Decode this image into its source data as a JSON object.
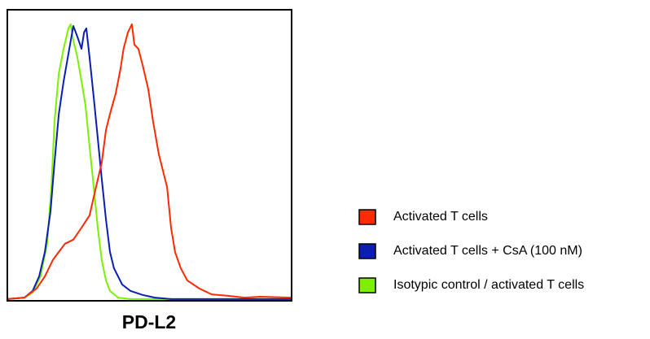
{
  "chart_data": {
    "type": "line",
    "x_label": "PD-L2",
    "xlim": [
      0,
      100
    ],
    "ylim": [
      0,
      100
    ],
    "series": [
      {
        "name": "Activated T cells",
        "color": "#ff2a00",
        "x": [
          0,
          6,
          10.3,
          13.2,
          16.0,
          18.1,
          20.3,
          23.2,
          26.1,
          28.9,
          31.2,
          33.2,
          34.7,
          36.1,
          38.1,
          39.8,
          40.9,
          42.4,
          43.8,
          44.7,
          46.1,
          47.6,
          49.6,
          51.3,
          53.3,
          56.2,
          57.6,
          59.0,
          61.0,
          63.3,
          67.6,
          71.9,
          77.7,
          83.4,
          89.1,
          100
        ],
        "values": [
          0.6,
          1.1,
          4.2,
          8.4,
          14,
          16.8,
          19.6,
          21,
          25.1,
          29.3,
          39.1,
          47.5,
          58.7,
          64.2,
          71.2,
          79.6,
          86.6,
          92.2,
          95,
          88,
          86.6,
          81,
          72.6,
          61.5,
          50.3,
          39.1,
          25.1,
          16.8,
          11.2,
          7,
          4.2,
          2.2,
          1.7,
          1.1,
          1.4,
          1.1
        ]
      },
      {
        "name": "Activated T cells + CsA (100 nM)",
        "color": "#0a1eb4",
        "x": [
          0,
          6,
          8.9,
          11.2,
          13.2,
          15.2,
          16.6,
          18.1,
          19.8,
          21.8,
          23.2,
          24.6,
          26.1,
          27,
          27.8,
          28.9,
          30.4,
          31.8,
          33.2,
          34.7,
          36.1,
          37.5,
          40.4,
          43.3,
          47.6,
          51.9,
          57.6,
          100
        ],
        "values": [
          0.6,
          1.1,
          3.4,
          8.4,
          16.8,
          30.7,
          47.5,
          64.2,
          75.4,
          86.6,
          94.4,
          90.8,
          86.6,
          92.2,
          93.6,
          83.8,
          69.8,
          55.9,
          41.9,
          27.9,
          16.8,
          11.2,
          5.6,
          3.4,
          2,
          1.1,
          0.6,
          0.6
        ]
      },
      {
        "name": "Isotypic control / activated T cells",
        "color": "#7cf000",
        "x": [
          0,
          6,
          8.9,
          11.7,
          14,
          15.5,
          16.6,
          18.1,
          19.8,
          21.5,
          22.3,
          23.2,
          24.6,
          26.1,
          27.5,
          28.9,
          30.4,
          31.8,
          33.2,
          34.7,
          36.1,
          39,
          43.3,
          100
        ],
        "values": [
          0.6,
          1.1,
          2.8,
          8.4,
          19.6,
          39.1,
          61.5,
          78.2,
          86.6,
          93.6,
          95,
          89.4,
          83.8,
          75.4,
          67,
          53.1,
          39.1,
          25.1,
          14,
          7,
          3.4,
          1.1,
          0.6,
          0.6
        ]
      }
    ]
  }
}
